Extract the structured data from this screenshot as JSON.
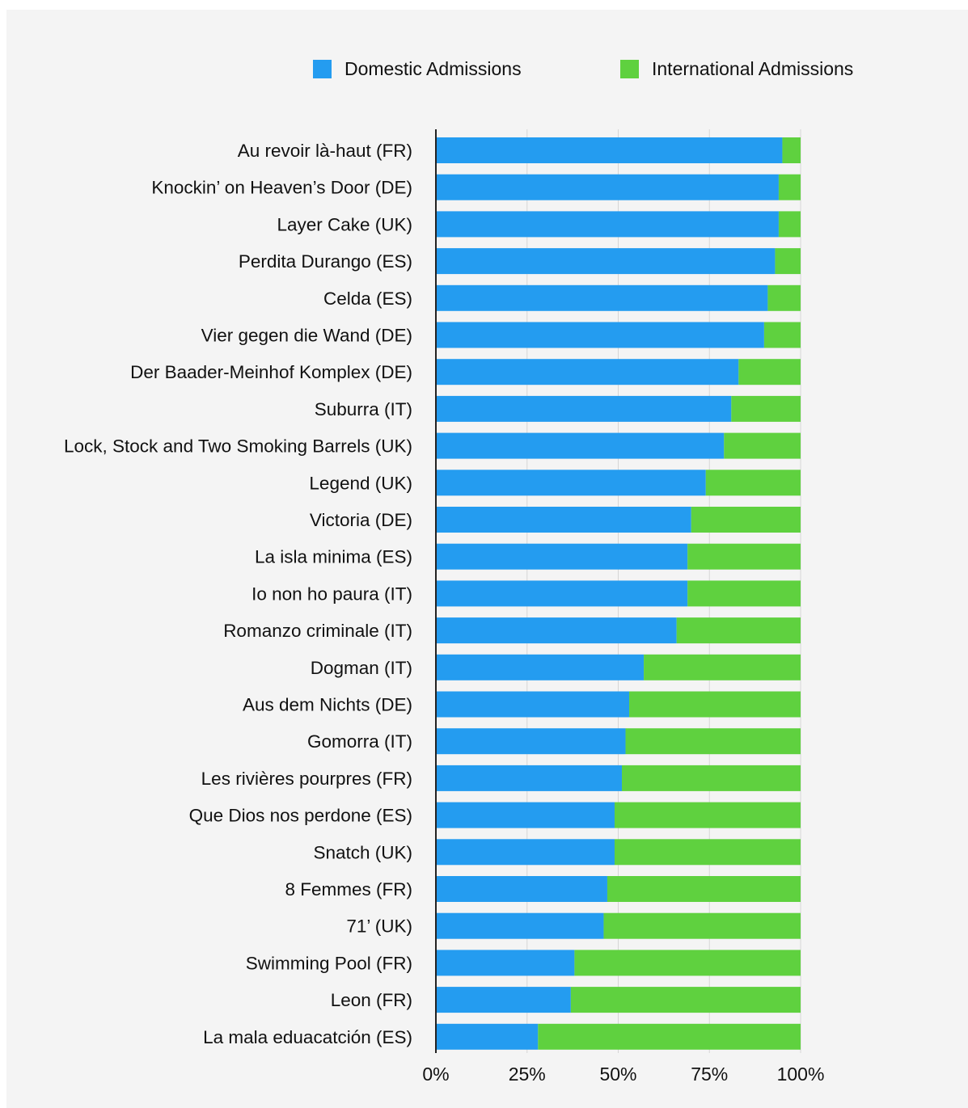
{
  "chart_data": {
    "type": "bar",
    "orientation": "horizontal",
    "stacked": true,
    "percent": true,
    "title": "",
    "xlabel": "",
    "ylabel": "",
    "xlim": [
      0,
      100
    ],
    "grid": true,
    "legend_position": "top",
    "ticks": [
      "0%",
      "25%",
      "50%",
      "75%",
      "100%"
    ],
    "categories": [
      "Au revoir là-haut (FR)",
      "Knockin’ on Heaven’s Door (DE)",
      "Layer Cake (UK)",
      "Perdita Durango (ES)",
      "Celda (ES)",
      "Vier gegen die Wand (DE)",
      "Der Baader-Meinhof Komplex (DE)",
      "Suburra (IT)",
      "Lock, Stock and Two Smoking Barrels (UK)",
      "Legend (UK)",
      "Victoria (DE)",
      "La isla minima (ES)",
      "Io non ho paura (IT)",
      "Romanzo criminale (IT)",
      "Dogman (IT)",
      "Aus dem Nichts (DE)",
      "Gomorra (IT)",
      "Les rivières pourpres  (FR)",
      "Que Dios nos perdone (ES)",
      "Snatch (UK)",
      "8 Femmes (FR)",
      "71’ (UK)",
      "Swimming Pool (FR)",
      "Leon (FR)",
      "La mala eduacatción (ES)"
    ],
    "series": [
      {
        "name": "Domestic Admissions",
        "color": "#249cf0",
        "values": [
          95,
          94,
          94,
          93,
          91,
          90,
          83,
          81,
          79,
          74,
          70,
          69,
          69,
          66,
          57,
          53,
          52,
          51,
          49,
          49,
          47,
          46,
          38,
          37,
          28
        ]
      },
      {
        "name": "International Admissions",
        "color": "#5fd13f",
        "values": [
          5,
          6,
          6,
          7,
          9,
          10,
          17,
          19,
          21,
          26,
          30,
          31,
          31,
          34,
          43,
          47,
          48,
          49,
          51,
          51,
          53,
          54,
          62,
          63,
          72
        ]
      }
    ]
  }
}
